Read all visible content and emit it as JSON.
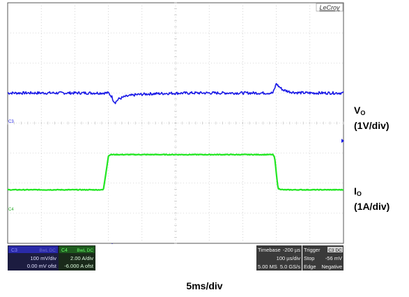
{
  "brand": "LeCroy",
  "channel_markers": {
    "ch3": "C3",
    "ch4": "C4"
  },
  "labels": {
    "vo_name": "V",
    "vo_sub": "O",
    "vo_scale": "(1V/div)",
    "io_name": "I",
    "io_sub": "O",
    "io_scale": "(1A/div)",
    "timebase": "5ms/div"
  },
  "ch3_box": {
    "name": "C3",
    "tags": "BwL DC",
    "scale": "100 mV/div",
    "offset": "0.00 mV ofst"
  },
  "ch4_box": {
    "name": "C4",
    "tags": "BwL DC",
    "scale": "2.00 A/div",
    "offset": "-6.000 A ofst"
  },
  "timebase_box": {
    "title": "Timebase",
    "delay": "-200 µs",
    "per_div": "100 µs/div",
    "samples": "5.00 MS",
    "rate": "5.0 GS/s"
  },
  "trigger_box": {
    "title": "Trigger",
    "channel": "C3 DC",
    "mode": "Stop",
    "level": "-56 mV",
    "type": "Edge",
    "slope": "Negative"
  },
  "colors": {
    "ch3": "#1a1ae6",
    "ch4": "#22e622",
    "grid": "#b8b8b8",
    "frame": "#555555"
  },
  "chart_data": {
    "type": "line",
    "title": "",
    "xlabel": "5ms/div",
    "ylabel": "",
    "x_divisions": 10,
    "y_divisions": 8,
    "xlim": [
      0,
      10
    ],
    "series": [
      {
        "name": "C3",
        "x": [
          0,
          3.0,
          3.1,
          3.15,
          3.2,
          3.3,
          3.5,
          3.8,
          4.2,
          4.8,
          5.5,
          7.0,
          7.9,
          7.95,
          8.0,
          8.05,
          8.2,
          8.4,
          8.6,
          9.0,
          10
        ],
        "y": [
          5.0,
          5.0,
          4.88,
          4.75,
          4.68,
          4.8,
          4.88,
          4.94,
          4.97,
          4.99,
          5.0,
          5.0,
          5.0,
          5.15,
          5.32,
          5.24,
          5.1,
          5.04,
          5.01,
          5.0,
          5.0
        ]
      },
      {
        "name": "C4",
        "x": [
          0,
          2.85,
          3.0,
          3.05,
          5.5,
          7.9,
          7.95,
          8.05,
          8.2,
          10
        ],
        "y": [
          1.78,
          1.78,
          2.9,
          2.95,
          2.95,
          2.95,
          2.85,
          1.82,
          1.78,
          1.78
        ]
      }
    ]
  }
}
